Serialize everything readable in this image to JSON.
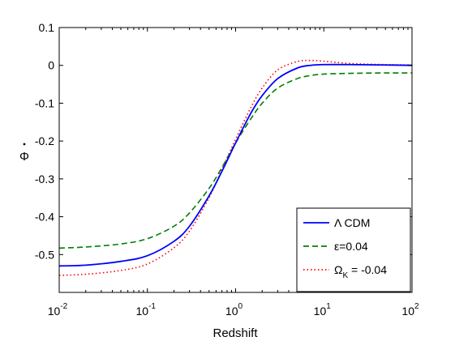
{
  "chart_data": {
    "type": "line",
    "xlabel": "Redshift",
    "ylabel": "Φ̇",
    "xscale": "log",
    "xlim": [
      0.01,
      100
    ],
    "ylim": [
      -0.6,
      0.1
    ],
    "grid": false,
    "legend_position": "bottom-right",
    "xticks": [
      {
        "value": 0.01,
        "base": "10",
        "exp": "-2"
      },
      {
        "value": 0.1,
        "base": "10",
        "exp": "-1"
      },
      {
        "value": 1,
        "base": "10",
        "exp": "0"
      },
      {
        "value": 10,
        "base": "10",
        "exp": "1"
      },
      {
        "value": 100,
        "base": "10",
        "exp": "2"
      }
    ],
    "yticks": [
      {
        "value": 0.1,
        "label": "0.1"
      },
      {
        "value": 0,
        "label": "0"
      },
      {
        "value": -0.1,
        "label": "-0.1"
      },
      {
        "value": -0.2,
        "label": "-0.2"
      },
      {
        "value": -0.3,
        "label": "-0.3"
      },
      {
        "value": -0.4,
        "label": "-0.4"
      },
      {
        "value": -0.5,
        "label": "-0.5"
      }
    ],
    "x": [
      0.01,
      0.02,
      0.05,
      0.1,
      0.2,
      0.3,
      0.5,
      0.7,
      1,
      1.5,
      2,
      3,
      5,
      7,
      10,
      20,
      50,
      100
    ],
    "series": [
      {
        "name": "Λ CDM",
        "color": "#0000ff",
        "dash": "solid",
        "values": [
          -0.53,
          -0.528,
          -0.518,
          -0.503,
          -0.465,
          -0.425,
          -0.345,
          -0.28,
          -0.205,
          -0.125,
          -0.08,
          -0.035,
          -0.007,
          0.0,
          0.002,
          0.002,
          0.001,
          0.0
        ]
      },
      {
        "name": "ε=0.04",
        "color": "#007f00",
        "dash": "dashed",
        "values": [
          -0.483,
          -0.48,
          -0.472,
          -0.458,
          -0.425,
          -0.39,
          -0.325,
          -0.27,
          -0.205,
          -0.14,
          -0.1,
          -0.06,
          -0.035,
          -0.027,
          -0.023,
          -0.021,
          -0.02,
          -0.02
        ]
      },
      {
        "name": "Ω_K = -0.04",
        "color": "#ff0000",
        "dash": "dotted",
        "values": [
          -0.555,
          -0.552,
          -0.542,
          -0.525,
          -0.482,
          -0.438,
          -0.35,
          -0.275,
          -0.195,
          -0.11,
          -0.06,
          -0.012,
          0.01,
          0.013,
          0.011,
          0.005,
          0.002,
          0.001
        ]
      }
    ],
    "legend": {
      "entries": [
        {
          "main": "Λ CDM",
          "sub": ""
        },
        {
          "main": "ε=0.04",
          "sub": ""
        },
        {
          "main": "Ω",
          "sub": "K",
          "tail": " = -0.04"
        }
      ]
    }
  }
}
